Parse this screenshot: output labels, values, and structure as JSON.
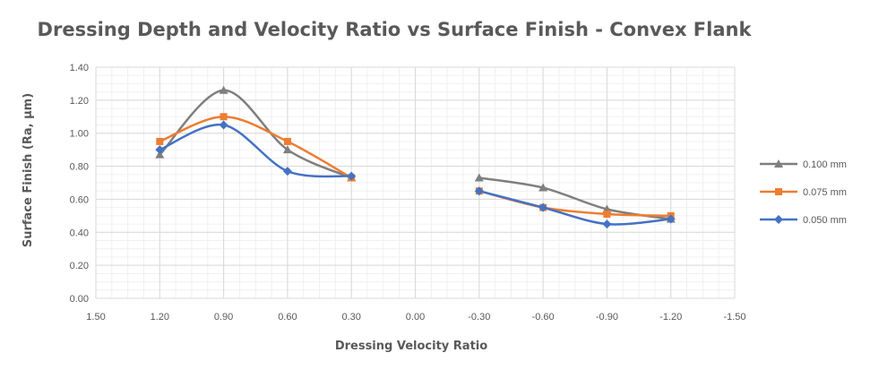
{
  "chart_data": {
    "type": "scatter",
    "title": "Dressing Depth and Velocity Ratio vs Surface Finish - Convex Flank",
    "xlabel": "Dressing Velocity Ratio",
    "ylabel": "Surface Finish (Ra, μm)",
    "xlim": [
      1.5,
      -1.5
    ],
    "ylim": [
      0.0,
      1.4
    ],
    "x_reversed": true,
    "x_ticks": [
      "1.50",
      "1.20",
      "0.90",
      "0.60",
      "0.30",
      "0.00",
      "-0.30",
      "-0.60",
      "-0.90",
      "-1.20",
      "-1.50"
    ],
    "y_ticks": [
      "0.00",
      "0.20",
      "0.40",
      "0.60",
      "0.80",
      "1.00",
      "1.20",
      "1.40"
    ],
    "grid": true,
    "legend_position": "right",
    "line_style": "smoothed lines with markers",
    "series": [
      {
        "name": "0.100 mm",
        "color": "#7f7f7f",
        "marker": "triangle",
        "segments": [
          [
            [
              1.2,
              0.87
            ],
            [
              0.9,
              1.26
            ],
            [
              0.6,
              0.9
            ],
            [
              0.3,
              0.73
            ]
          ],
          [
            [
              -0.3,
              0.73
            ],
            [
              -0.6,
              0.67
            ],
            [
              -0.9,
              0.54
            ],
            [
              -1.2,
              0.48
            ]
          ]
        ]
      },
      {
        "name": "0.075 mm",
        "color": "#ed7d31",
        "marker": "square",
        "segments": [
          [
            [
              1.2,
              0.95
            ],
            [
              0.9,
              1.1
            ],
            [
              0.6,
              0.95
            ],
            [
              0.3,
              0.73
            ]
          ],
          [
            [
              -0.3,
              0.65
            ],
            [
              -0.6,
              0.55
            ],
            [
              -0.9,
              0.51
            ],
            [
              -1.2,
              0.5
            ]
          ]
        ]
      },
      {
        "name": "0.050 mm",
        "color": "#4472c4",
        "marker": "diamond",
        "segments": [
          [
            [
              1.2,
              0.9
            ],
            [
              0.9,
              1.05
            ],
            [
              0.6,
              0.77
            ],
            [
              0.3,
              0.74
            ]
          ],
          [
            [
              -0.3,
              0.65
            ],
            [
              -0.6,
              0.55
            ],
            [
              -0.9,
              0.45
            ],
            [
              -1.2,
              0.48
            ]
          ]
        ]
      }
    ]
  }
}
